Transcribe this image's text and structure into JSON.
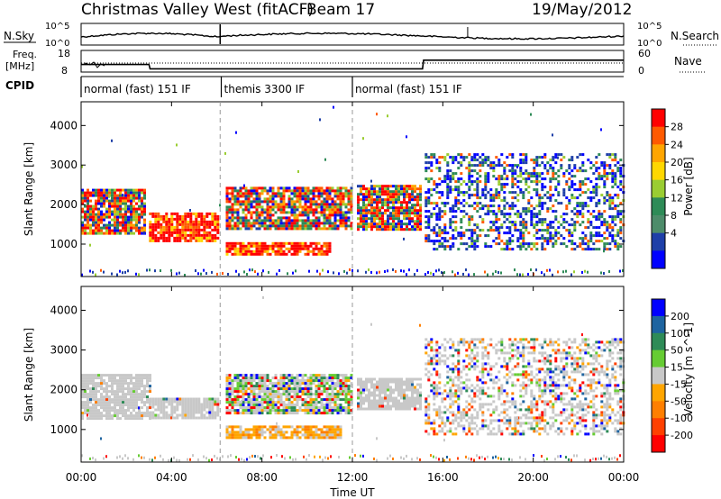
{
  "header": {
    "station": "Christmas Valley West (fitACF)",
    "beam": "Beam 17",
    "date": "19/May/2012"
  },
  "top_panels": {
    "nsky_label": "N.Sky",
    "nsky_ticks": [
      "10^5",
      "10^0"
    ],
    "nsearch_label": "N.Search",
    "nsearch_ticks": [
      "10^5",
      "10^0"
    ],
    "freq_label_1": "Freq.",
    "freq_label_2": "[MHz]",
    "freq_ticks": [
      "18",
      "8"
    ],
    "nave_label": "Nave",
    "nave_ticks": [
      "60",
      "0"
    ],
    "cpid_label": "CPID",
    "cpid_segments": [
      {
        "label": "normal (fast) 151 IF",
        "start_hour": 0,
        "end_hour": 6.2
      },
      {
        "label": "themis 3300 IF",
        "start_hour": 6.2,
        "end_hour": 12.0
      },
      {
        "label": "normal (fast) 151 IF",
        "start_hour": 12.0,
        "end_hour": 24
      }
    ],
    "freq_series": [
      {
        "hour": 0,
        "mhz": 11.5
      },
      {
        "hour": 3.0,
        "mhz": 11.5
      },
      {
        "hour": 3.05,
        "mhz": 9.5
      },
      {
        "hour": 6.1,
        "mhz": 9.5
      },
      {
        "hour": 6.3,
        "mhz": 9.5
      },
      {
        "hour": 15.1,
        "mhz": 9.5
      },
      {
        "hour": 15.15,
        "mhz": 13.5
      },
      {
        "hour": 24,
        "mhz": 13.5
      }
    ]
  },
  "chart_data": [
    {
      "type": "heatmap",
      "name": "power",
      "xlabel": "Time UT",
      "ylabel": "Slant Range [km]",
      "xlim": [
        0,
        24
      ],
      "ylim": [
        180,
        4600
      ],
      "x_ticks": [
        "00:00",
        "04:00",
        "08:00",
        "12:00",
        "16:00",
        "20:00",
        "00:00"
      ],
      "y_ticks": [
        1000,
        2000,
        3000,
        4000
      ],
      "colorbar": {
        "label": "Power [dB]",
        "ticks": [
          "28",
          "24",
          "20",
          "16",
          "12",
          "8",
          "4"
        ],
        "colors": [
          "#ff0000",
          "#ff5a00",
          "#ffa500",
          "#ffd700",
          "#9acd32",
          "#2e8b57",
          "#4d8c6a",
          "#1e3fa8",
          "#0000ff"
        ]
      },
      "regions": [
        {
          "t0": 0.0,
          "t1": 2.8,
          "r0": 1300,
          "r1": 2400,
          "level": "mixed"
        },
        {
          "t0": 3.0,
          "t1": 6.1,
          "r0": 1100,
          "r1": 1800,
          "level": "high"
        },
        {
          "t0": 6.4,
          "t1": 11.0,
          "r0": 750,
          "r1": 1050,
          "level": "high"
        },
        {
          "t0": 6.4,
          "t1": 12.0,
          "r0": 1400,
          "r1": 2450,
          "level": "mixed"
        },
        {
          "t0": 12.2,
          "t1": 15.0,
          "r0": 1400,
          "r1": 2500,
          "level": "mixed"
        },
        {
          "t0": 15.2,
          "t1": 24.0,
          "r0": 900,
          "r1": 3300,
          "level": "sparse"
        }
      ]
    },
    {
      "type": "heatmap",
      "name": "velocity",
      "xlabel": "Time UT",
      "ylabel": "Slant Range [km]",
      "xlim": [
        0,
        24
      ],
      "ylim": [
        180,
        4600
      ],
      "x_ticks": [
        "00:00",
        "04:00",
        "08:00",
        "12:00",
        "16:00",
        "20:00",
        "00:00"
      ],
      "y_ticks": [
        1000,
        2000,
        3000,
        4000
      ],
      "colorbar": {
        "label": "Velocity [m s^-1]",
        "ticks": [
          "200",
          "100",
          "50",
          "15",
          "-15",
          "-50",
          "-100",
          "-200"
        ],
        "colors": [
          "#0000ff",
          "#1e64a0",
          "#2e8b57",
          "#66cc33",
          "#c8c8c8",
          "#ffa500",
          "#ff7f00",
          "#ff4000",
          "#ff0000"
        ]
      },
      "regions": [
        {
          "t0": 0.0,
          "t1": 3.0,
          "r0": 1300,
          "r1": 2400,
          "level": "ground"
        },
        {
          "t0": 3.0,
          "t1": 6.1,
          "r0": 1300,
          "r1": 1800,
          "level": "ground"
        },
        {
          "t0": 6.4,
          "t1": 12.0,
          "r0": 1400,
          "r1": 2400,
          "level": "mixed"
        },
        {
          "t0": 6.4,
          "t1": 11.5,
          "r0": 800,
          "r1": 1100,
          "level": "negative"
        },
        {
          "t0": 12.2,
          "t1": 15.0,
          "r0": 1500,
          "r1": 2300,
          "level": "ground"
        },
        {
          "t0": 15.2,
          "t1": 24.0,
          "r0": 900,
          "r1": 3300,
          "level": "sparse"
        }
      ]
    }
  ]
}
